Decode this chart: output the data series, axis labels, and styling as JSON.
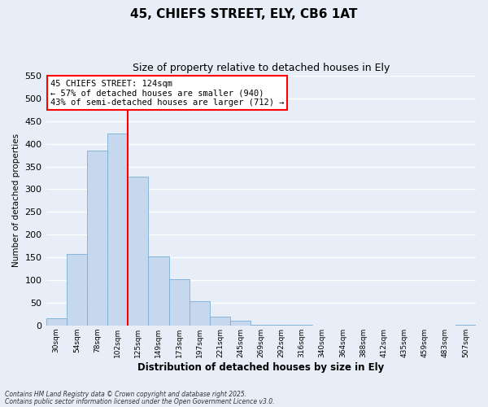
{
  "title": "45, CHIEFS STREET, ELY, CB6 1AT",
  "subtitle": "Size of property relative to detached houses in Ely",
  "xlabel": "Distribution of detached houses by size in Ely",
  "ylabel": "Number of detached properties",
  "bin_labels": [
    "30sqm",
    "54sqm",
    "78sqm",
    "102sqm",
    "125sqm",
    "149sqm",
    "173sqm",
    "197sqm",
    "221sqm",
    "245sqm",
    "269sqm",
    "292sqm",
    "316sqm",
    "340sqm",
    "364sqm",
    "388sqm",
    "412sqm",
    "435sqm",
    "459sqm",
    "483sqm",
    "507sqm"
  ],
  "bar_values": [
    15,
    157,
    385,
    422,
    328,
    152,
    101,
    54,
    20,
    10,
    2,
    1,
    1,
    0,
    0,
    0,
    0,
    0,
    0,
    0,
    2
  ],
  "bar_color": "#c5d8ee",
  "bar_edge_color": "#7aafd4",
  "background_color": "#e8eef8",
  "plot_bg_color": "#e8eef8",
  "grid_color": "#ffffff",
  "vline_color": "red",
  "vline_x": 4,
  "annotation_title": "45 CHIEFS STREET: 124sqm",
  "annotation_line1": "← 57% of detached houses are smaller (940)",
  "annotation_line2": "43% of semi-detached houses are larger (712) →",
  "annotation_box_color": "#ffffff",
  "annotation_box_edge": "red",
  "ylim": [
    0,
    550
  ],
  "yticks": [
    0,
    50,
    100,
    150,
    200,
    250,
    300,
    350,
    400,
    450,
    500,
    550
  ],
  "footnote1": "Contains HM Land Registry data © Crown copyright and database right 2025.",
  "footnote2": "Contains public sector information licensed under the Open Government Licence v3.0."
}
